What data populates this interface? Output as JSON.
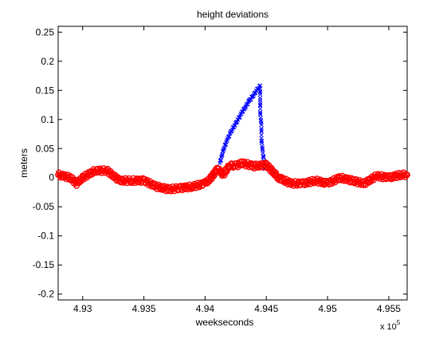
{
  "chart_data": {
    "type": "scatter",
    "title": "height deviations",
    "xlabel": "weekseconds",
    "ylabel": "meters",
    "x_exponent_label": "x 10",
    "x_exponent_power": "5",
    "x_scale": 100000,
    "xlim": [
      4.928,
      4.9565
    ],
    "ylim": [
      -0.21,
      0.26
    ],
    "x_ticks": [
      4.93,
      4.935,
      4.94,
      4.945,
      4.95,
      4.955
    ],
    "x_tick_labels": [
      "4.93",
      "4.935",
      "4.94",
      "4.945",
      "4.95",
      "4.955"
    ],
    "y_ticks": [
      -0.2,
      -0.15,
      -0.1,
      -0.05,
      0,
      0.05,
      0.1,
      0.15,
      0.2,
      0.25
    ],
    "y_tick_labels": [
      "-0.2",
      "-0.15",
      "-0.1",
      "-0.05",
      "0",
      "0.05",
      "0.1",
      "0.15",
      "0.2",
      "0.25"
    ],
    "grid": false,
    "series": [
      {
        "marker": "x",
        "color": "#0000ff",
        "x": [
          4.9412,
          4.9415,
          4.9418,
          4.9421,
          4.9424,
          4.9427,
          4.943,
          4.9433,
          4.9436,
          4.9439,
          4.9442,
          4.9445,
          4.9445,
          4.9445,
          4.9446,
          4.9446,
          4.9447,
          4.9448,
          4.9449
        ],
        "y": [
          0.025,
          0.048,
          0.065,
          0.078,
          0.09,
          0.1,
          0.112,
          0.122,
          0.132,
          0.14,
          0.15,
          0.157,
          0.13,
          0.11,
          0.09,
          0.065,
          0.045,
          0.03,
          0.015
        ]
      },
      {
        "marker": "o",
        "color": "#ff0000",
        "x": [
          4.928,
          4.929,
          4.9295,
          4.93,
          4.931,
          4.932,
          4.933,
          4.934,
          4.935,
          4.936,
          4.937,
          4.938,
          4.939,
          4.94,
          4.9405,
          4.941,
          4.9415,
          4.942,
          4.9425,
          4.943,
          4.944,
          4.945,
          4.946,
          4.947,
          4.948,
          4.949,
          4.95,
          4.951,
          4.952,
          4.953,
          4.954,
          4.955,
          4.956,
          4.9565
        ],
        "y": [
          0.005,
          0.0,
          -0.01,
          0.0,
          0.012,
          0.012,
          -0.005,
          -0.005,
          -0.005,
          -0.015,
          -0.02,
          -0.018,
          -0.015,
          -0.01,
          0.0,
          0.015,
          0.005,
          0.022,
          0.02,
          0.025,
          0.02,
          0.022,
          0.0,
          -0.01,
          -0.01,
          -0.005,
          -0.01,
          0.0,
          -0.005,
          -0.01,
          0.003,
          0.0,
          0.005,
          0.005
        ]
      }
    ]
  }
}
